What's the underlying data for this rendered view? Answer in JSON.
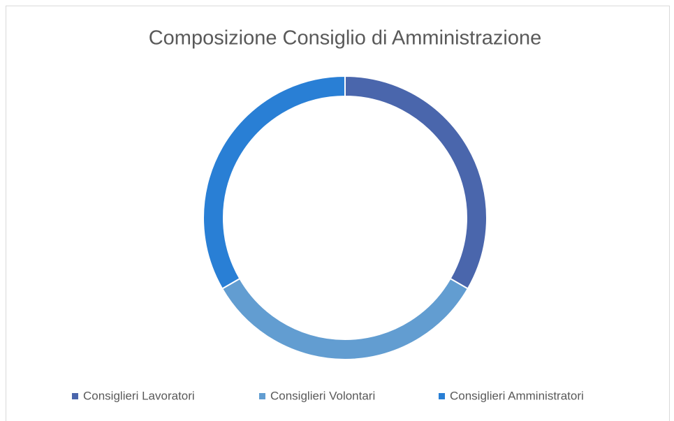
{
  "chart_data": {
    "type": "donut",
    "title": "Composizione Consiglio di Amministrazione",
    "categories": [
      "Consiglieri Lavoratori",
      "Consiglieri Volontari",
      "Consiglieri Amministratori"
    ],
    "values": [
      1,
      1,
      1
    ],
    "colors": [
      "#4a66ac",
      "#629dd1",
      "#297fd5"
    ],
    "legend": "bottom"
  }
}
